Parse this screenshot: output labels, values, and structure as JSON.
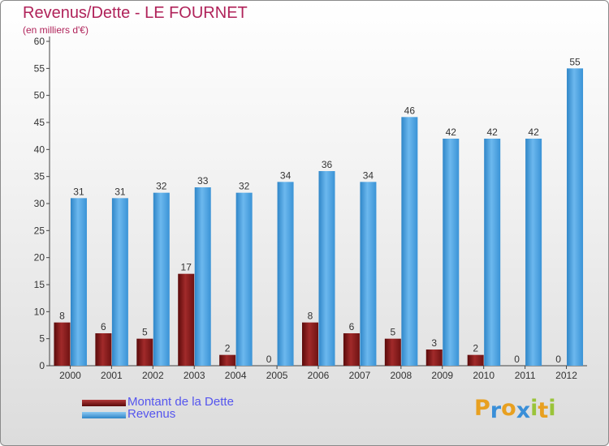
{
  "chart_data": {
    "type": "bar",
    "title": "Revenus/Dette - LE FOURNET",
    "subtitle": "(en milliers d'€)",
    "categories": [
      "2000",
      "2001",
      "2002",
      "2003",
      "2004",
      "2005",
      "2006",
      "2007",
      "2008",
      "2009",
      "2010",
      "2011",
      "2012"
    ],
    "series": [
      {
        "name": "Montant de la Dette",
        "color": "#7b1515",
        "values": [
          8,
          6,
          5,
          17,
          2,
          0,
          8,
          6,
          5,
          3,
          2,
          0,
          0
        ]
      },
      {
        "name": "Revenus",
        "color": "#4aa2e3",
        "values": [
          31,
          31,
          32,
          33,
          32,
          34,
          36,
          34,
          46,
          42,
          42,
          42,
          55
        ]
      }
    ],
    "yticks": [
      0,
      5,
      10,
      15,
      20,
      25,
      30,
      35,
      40,
      45,
      50,
      55,
      60
    ],
    "ylim": [
      0,
      60
    ],
    "grid": false,
    "legend_position": "bottom-left"
  },
  "logo": {
    "text": "Proxiti",
    "letters": [
      "P",
      "r",
      "o",
      "x",
      "i",
      "t",
      "i"
    ],
    "colors": [
      "#e8a020",
      "#3a8fd8",
      "#e8a020",
      "#3a8fd8",
      "#9ac43a",
      "#e8a020",
      "#9ac43a"
    ]
  }
}
